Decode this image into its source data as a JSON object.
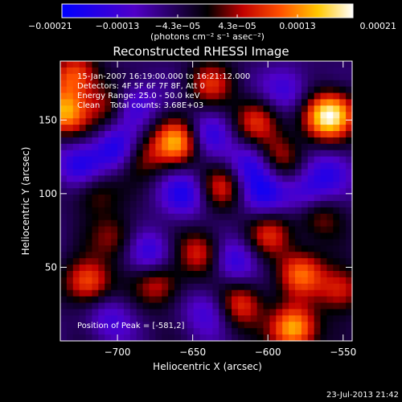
{
  "chart_data": {
    "type": "heatmap",
    "title": "Reconstructed RHESSI Image",
    "xlabel": "Heliocentric X (arcsec)",
    "ylabel": "Heliocentric Y (arcsec)",
    "xlim": [
      -738,
      -544
    ],
    "ylim": [
      0,
      190
    ],
    "x_ticks": [
      -700,
      -650,
      -600,
      -550
    ],
    "y_ticks": [
      50,
      100,
      150
    ],
    "x_tick_labels": [
      "−700",
      "−650",
      "−600",
      "−550"
    ],
    "y_tick_labels": [
      "50",
      "100",
      "150"
    ],
    "colorbar": {
      "min": -0.00021,
      "max": 0.00021,
      "ticks": [
        -0.00021,
        -0.00013,
        -4.3e-05,
        4.3e-05,
        0.00013,
        0.00021
      ],
      "tick_labels": [
        "−0.00021",
        "−0.00013",
        "−4.3e−05",
        "4.3e−05",
        "0.00013",
        "0.00021"
      ],
      "units": "(photons cm⁻² s⁻¹ asec⁻²)",
      "colormap": [
        "#0000ff",
        "#5000c8",
        "#000000",
        "#c00000",
        "#ff5000",
        "#ffc800",
        "#ffffff"
      ]
    },
    "annotations": [
      "15-Jan-2007 16:19:00.000 to 16:21:12.000",
      "Detectors: 4F 5F 6F 7F 8F, Att 0",
      "Energy Range: 25.0 - 50.0 keV",
      "Clean    Total counts: 3.68E+03"
    ],
    "peak_text": "Position of Peak = [-581,2]",
    "peak": {
      "x": -581,
      "y": 2
    },
    "grid": false,
    "hotspots": [
      {
        "x": -735,
        "y": 155,
        "v": 0.00019
      },
      {
        "x": -728,
        "y": 180,
        "v": 0.00015
      },
      {
        "x": -720,
        "y": 40,
        "v": 0.00016
      },
      {
        "x": -715,
        "y": 100,
        "v": 8e-05
      },
      {
        "x": -706,
        "y": 160,
        "v": 0.0001
      },
      {
        "x": -702,
        "y": 70,
        "v": 9e-05
      },
      {
        "x": -685,
        "y": 125,
        "v": 0.0001
      },
      {
        "x": -673,
        "y": 38,
        "v": 0.00012
      },
      {
        "x": -660,
        "y": 135,
        "v": 0.00019
      },
      {
        "x": -645,
        "y": 60,
        "v": 0.00013
      },
      {
        "x": -638,
        "y": 175,
        "v": 0.00011
      },
      {
        "x": -630,
        "y": 105,
        "v": 0.00012
      },
      {
        "x": -618,
        "y": 25,
        "v": 0.00014
      },
      {
        "x": -608,
        "y": 150,
        "v": 0.00012
      },
      {
        "x": -598,
        "y": 72,
        "v": 0.00012
      },
      {
        "x": -592,
        "y": 125,
        "v": 0.00011
      },
      {
        "x": -583,
        "y": 8,
        "v": 0.00021
      },
      {
        "x": -578,
        "y": 46,
        "v": 0.00015
      },
      {
        "x": -565,
        "y": 150,
        "v": 0.00012
      },
      {
        "x": -556,
        "y": 155,
        "v": 0.00017
      },
      {
        "x": -552,
        "y": 35,
        "v": 0.00013
      },
      {
        "x": -566,
        "y": 85,
        "v": 9e-05
      },
      {
        "x": -725,
        "y": 120,
        "v": -0.00012
      },
      {
        "x": -700,
        "y": 130,
        "v": -0.00013
      },
      {
        "x": -690,
        "y": 160,
        "v": -0.00011
      },
      {
        "x": -678,
        "y": 60,
        "v": -0.00011
      },
      {
        "x": -655,
        "y": 100,
        "v": -0.00012
      },
      {
        "x": -640,
        "y": 140,
        "v": -0.0001
      },
      {
        "x": -622,
        "y": 55,
        "v": -0.00011
      },
      {
        "x": -612,
        "y": 120,
        "v": -0.00012
      },
      {
        "x": -602,
        "y": 100,
        "v": -0.00011
      },
      {
        "x": -588,
        "y": 170,
        "v": -0.0001
      },
      {
        "x": -575,
        "y": 100,
        "v": -0.0001
      },
      {
        "x": -560,
        "y": 115,
        "v": -9e-05
      },
      {
        "x": -705,
        "y": 15,
        "v": -8e-05
      },
      {
        "x": -640,
        "y": 20,
        "v": -9e-05
      }
    ]
  },
  "footer": {
    "timestamp": "23-Jul-2013 21:42"
  }
}
